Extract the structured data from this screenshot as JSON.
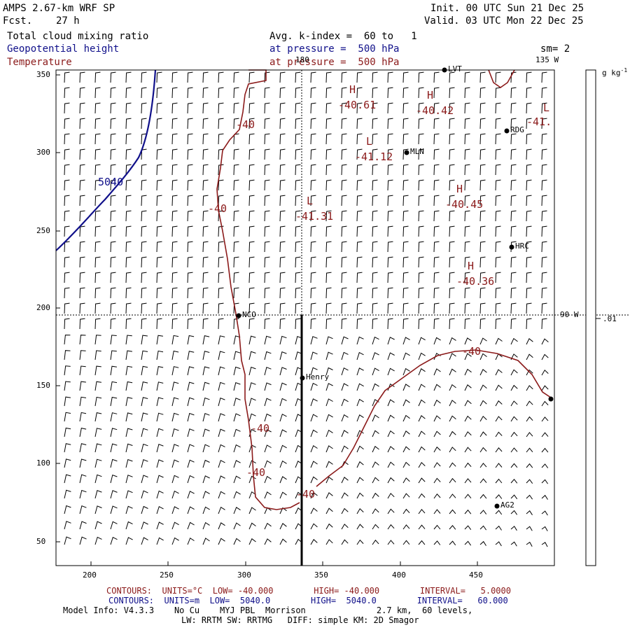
{
  "header": {
    "model": "AMPS 2.67-km WRF SP",
    "fcst_label": "Fcst.",
    "fcst_value": "27 h",
    "init": "Init. 00 UTC Sun 21 Dec 25",
    "valid": "Valid. 03 UTC Mon 22 Dec 25",
    "field1": "Total cloud mixing ratio",
    "field2": "Geopotential height",
    "field3": "Temperature",
    "avg": "Avg. k-index =  60 to   1",
    "pressure1": "at pressure =  500 hPa",
    "pressure2": "at pressure =  500 hPa",
    "smoothing": "sm= 2"
  },
  "map": {
    "lon_180": "180",
    "lon_135": "135 W",
    "lon_90": "90 W",
    "y_ticks": [
      "350",
      "300",
      "250",
      "200",
      "150",
      "100",
      "50"
    ],
    "x_ticks": [
      "200",
      "250",
      "300",
      "350",
      "400",
      "450"
    ],
    "stations": [
      {
        "name": "NCO"
      },
      {
        "name": "Henry"
      },
      {
        "name": "MLN"
      },
      {
        "name": "RDG"
      },
      {
        "name": "HRC"
      },
      {
        "name": "AG2"
      },
      {
        "name": "LVT"
      }
    ],
    "temp_labels": [
      "-40",
      "-40",
      "-40",
      "-40",
      "-40",
      "-40",
      "-41."
    ],
    "extrema": [
      {
        "type": "H",
        "value": "-40.61"
      },
      {
        "type": "H",
        "value": "-40.42"
      },
      {
        "type": "L",
        "value": "-41.12"
      },
      {
        "type": "H",
        "value": "-40.45"
      },
      {
        "type": "L",
        "value": "-41.31"
      },
      {
        "type": "H",
        "value": "-40.36"
      },
      {
        "type": "L",
        "value": ""
      }
    ],
    "height_label": "5040"
  },
  "colorbar": {
    "units": "g kg",
    "units_exp": "-1",
    "tick": ".01"
  },
  "footer": {
    "red_line": "CONTOURS:  UNITS=°C  LOW= -40.000        HIGH= -40.000        INTERVAL=   5.0000",
    "blue_line": "CONTOURS:  UNITS=m  LOW=  5040.0        HIGH=  5040.0        INTERVAL=   60.000",
    "model_info": "Model Info: V4.3.3    No Cu    MYJ PBL  Morrison              2.7 km,  60 levels,",
    "physics": "LW: RRTM SW: RRTMG   DIFF: simple KM: 2D Smagor"
  },
  "colors": {
    "temperature": "#8b1a1a",
    "height": "#10108a",
    "barbs": "#000000"
  }
}
